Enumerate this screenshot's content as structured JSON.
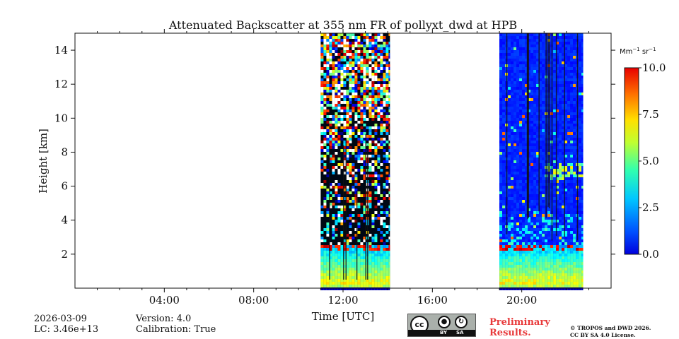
{
  "chart_data": {
    "type": "heatmap",
    "title": "Attenuated Backscatter at 355 nm FR of pollyxt_dwd at HPB",
    "xlabel": "Time [UTC]",
    "ylabel": "Height [km]",
    "xlim_hours": [
      0,
      24
    ],
    "ylim_km": [
      0,
      15
    ],
    "x_ticks": [
      {
        "value": 4,
        "label": "04:00"
      },
      {
        "value": 8,
        "label": "08:00"
      },
      {
        "value": 12,
        "label": "12:00"
      },
      {
        "value": 16,
        "label": "16:00"
      },
      {
        "value": 20,
        "label": "20:00"
      }
    ],
    "y_ticks": [
      {
        "value": 2,
        "label": "2"
      },
      {
        "value": 4,
        "label": "4"
      },
      {
        "value": 6,
        "label": "6"
      },
      {
        "value": 8,
        "label": "8"
      },
      {
        "value": 10,
        "label": "10"
      },
      {
        "value": 12,
        "label": "12"
      },
      {
        "value": 14,
        "label": "14"
      }
    ],
    "colorbar": {
      "label": "Mm",
      "label_exp1": "−1",
      "label_mid": " sr",
      "label_exp2": "−1",
      "range": [
        0,
        10
      ],
      "colormap": "jet",
      "ticks": [
        {
          "value": 0,
          "label": "0.0"
        },
        {
          "value": 2.5,
          "label": "2.5"
        },
        {
          "value": 5,
          "label": "5.0"
        },
        {
          "value": 7.5,
          "label": "7.5"
        },
        {
          "value": 10,
          "label": "10.0"
        }
      ]
    },
    "segments": [
      {
        "start_hour": 11.0,
        "end_hour": 14.1,
        "boundary_layer_top_km": 2.6,
        "noise_level": "high"
      },
      {
        "start_hour": 19.0,
        "end_hour": 22.75,
        "boundary_layer_top_km": 2.6,
        "noise_level": "low",
        "elevated_layer_km": [
          6.5,
          7.5
        ],
        "elevated_layer_hours": [
          21.0,
          22.75
        ]
      }
    ]
  },
  "footer": {
    "date": "2026-03-09",
    "lc": "LC: 3.46e+13",
    "version": "Version: 4.0",
    "calibration": "Calibration: True",
    "license_badge": {
      "cc": "cc",
      "by": "BY",
      "sa": "SA"
    },
    "preliminary_line1": "Preliminary",
    "preliminary_line2": "Results.",
    "copyright_line1": "© TROPOS and DWD 2026.",
    "copyright_line2": "CC BY SA 4.0 License."
  }
}
